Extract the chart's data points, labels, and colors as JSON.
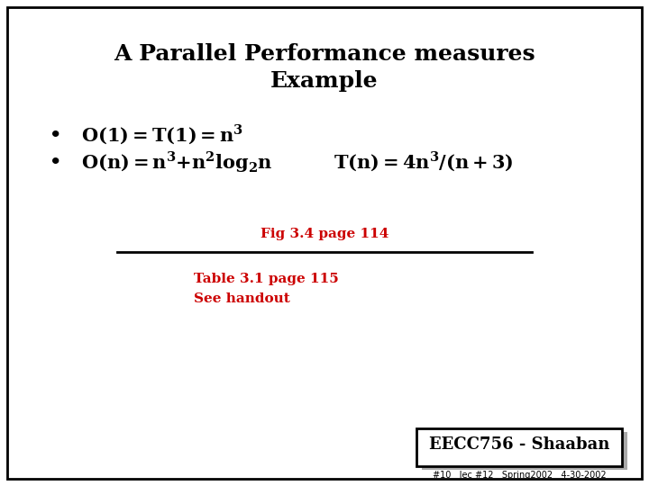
{
  "title_line1": "A Parallel Performance measures",
  "title_line2": "Example",
  "fig_label": "Fig 3.4 page 114",
  "table_label": "Table 3.1 page 115",
  "handout_label": "See handout",
  "footer_main": "EECC756 - Shaaban",
  "footer_sub": "#10   lec #12   Spring2002   4-30-2002",
  "bg_color": "#ffffff",
  "border_color": "#000000",
  "title_color": "#000000",
  "bullet_color": "#000000",
  "red_color": "#cc0000",
  "footer_color": "#000000",
  "title_fontsize": 18,
  "bullet_fontsize": 15,
  "fig_fontsize": 11,
  "footer_main_fontsize": 13,
  "footer_sub_fontsize": 7
}
